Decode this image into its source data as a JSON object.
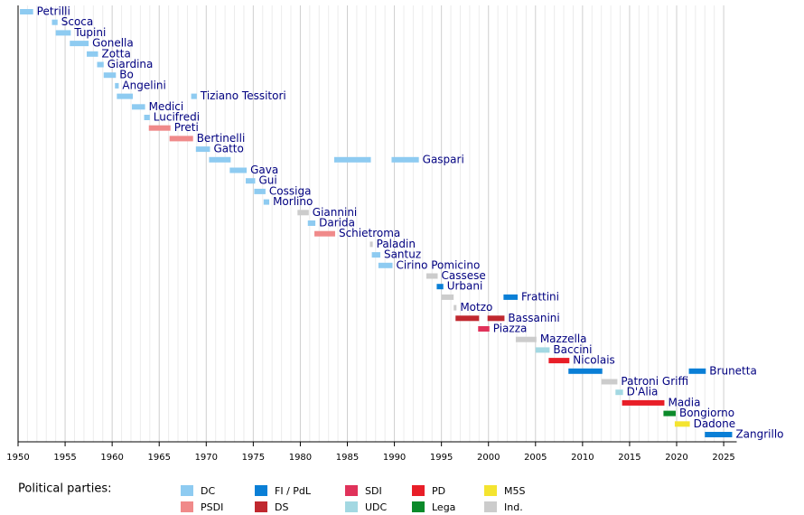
{
  "chart_data": {
    "type": "timeline",
    "xlim": [
      1950,
      2026
    ],
    "xticks": [
      1950,
      1955,
      1960,
      1965,
      1970,
      1975,
      1980,
      1985,
      1990,
      1995,
      2000,
      2005,
      2010,
      2015,
      2020,
      2025
    ],
    "minor_xticks": [
      1951,
      1952,
      1953,
      1954,
      1956,
      1957,
      1958,
      1959,
      1961,
      1962,
      1963,
      1964,
      1966,
      1967,
      1968,
      1969,
      1971,
      1972,
      1973,
      1974,
      1976,
      1977,
      1978,
      1979,
      1981,
      1982,
      1983,
      1984,
      1986,
      1987,
      1988,
      1989,
      1991,
      1992,
      1993,
      1994,
      1996,
      1997,
      1998,
      1999,
      2001,
      2002,
      2003,
      2004,
      2006,
      2007,
      2008,
      2009,
      2011,
      2012,
      2013,
      2014,
      2016,
      2017,
      2018,
      2019,
      2021,
      2022,
      2023,
      2024
    ],
    "legend_title": "Political parties:",
    "parties": [
      {
        "name": "DC",
        "color": "#8ecbf1"
      },
      {
        "name": "PSDI",
        "color": "#f08a8a"
      },
      {
        "name": "FI / PdL",
        "color": "#0a7fd6"
      },
      {
        "name": "DS",
        "color": "#c0282f"
      },
      {
        "name": "SDI",
        "color": "#e0325a"
      },
      {
        "name": "UDC",
        "color": "#a3d8e2"
      },
      {
        "name": "PD",
        "color": "#e81e28"
      },
      {
        "name": "Lega",
        "color": "#0b8a2a"
      },
      {
        "name": "M5S",
        "color": "#f4e430"
      },
      {
        "name": "Ind.",
        "color": "#cccccc"
      }
    ],
    "rows": [
      {
        "name": "Petrilli",
        "bars": [
          {
            "start": 1950.2,
            "end": 1951.6,
            "party": "DC"
          }
        ]
      },
      {
        "name": "Scoca",
        "bars": [
          {
            "start": 1953.6,
            "end": 1954.2,
            "party": "DC"
          }
        ]
      },
      {
        "name": "Tupini",
        "bars": [
          {
            "start": 1954.0,
            "end": 1955.6,
            "party": "DC"
          }
        ]
      },
      {
        "name": "Gonella",
        "bars": [
          {
            "start": 1955.5,
            "end": 1957.5,
            "party": "DC"
          }
        ]
      },
      {
        "name": "Zotta",
        "bars": [
          {
            "start": 1957.3,
            "end": 1958.5,
            "party": "DC"
          }
        ]
      },
      {
        "name": "Giardina",
        "bars": [
          {
            "start": 1958.4,
            "end": 1959.1,
            "party": "DC"
          }
        ]
      },
      {
        "name": "Bo",
        "bars": [
          {
            "start": 1959.1,
            "end": 1960.4,
            "party": "DC"
          }
        ]
      },
      {
        "name": "Angelini",
        "bars": [
          {
            "start": 1960.3,
            "end": 1960.7,
            "party": "DC"
          }
        ]
      },
      {
        "name": "Tiziano Tessitori",
        "bars": [
          {
            "start": 1960.5,
            "end": 1962.2,
            "party": "DC"
          },
          {
            "start": 1968.4,
            "end": 1969.0,
            "party": "DC"
          }
        ]
      },
      {
        "name": "Medici",
        "bars": [
          {
            "start": 1962.1,
            "end": 1963.5,
            "party": "DC"
          }
        ]
      },
      {
        "name": "Lucifredi",
        "bars": [
          {
            "start": 1963.4,
            "end": 1964.0,
            "party": "DC"
          }
        ]
      },
      {
        "name": "Preti",
        "bars": [
          {
            "start": 1963.9,
            "end": 1966.2,
            "party": "PSDI"
          }
        ]
      },
      {
        "name": "Bertinelli",
        "bars": [
          {
            "start": 1966.1,
            "end": 1968.6,
            "party": "PSDI"
          }
        ]
      },
      {
        "name": "Gatto",
        "bars": [
          {
            "start": 1968.9,
            "end": 1970.4,
            "party": "DC"
          }
        ]
      },
      {
        "name": "Gaspari",
        "bars": [
          {
            "start": 1970.3,
            "end": 1972.6,
            "party": "DC"
          },
          {
            "start": 1983.6,
            "end": 1987.5,
            "party": "DC"
          },
          {
            "start": 1989.7,
            "end": 1992.6,
            "party": "DC"
          }
        ]
      },
      {
        "name": "Gava",
        "bars": [
          {
            "start": 1972.5,
            "end": 1974.3,
            "party": "DC"
          }
        ]
      },
      {
        "name": "Gui",
        "bars": [
          {
            "start": 1974.2,
            "end": 1975.2,
            "party": "DC"
          }
        ]
      },
      {
        "name": "Cossiga",
        "bars": [
          {
            "start": 1975.1,
            "end": 1976.3,
            "party": "DC"
          }
        ]
      },
      {
        "name": "Morlino",
        "bars": [
          {
            "start": 1976.1,
            "end": 1976.7,
            "party": "DC"
          }
        ]
      },
      {
        "name": "Giannini",
        "bars": [
          {
            "start": 1979.7,
            "end": 1980.9,
            "party": "Ind."
          }
        ]
      },
      {
        "name": "Darida",
        "bars": [
          {
            "start": 1980.8,
            "end": 1981.6,
            "party": "DC"
          }
        ]
      },
      {
        "name": "Schietroma",
        "bars": [
          {
            "start": 1981.5,
            "end": 1983.7,
            "party": "PSDI"
          }
        ]
      },
      {
        "name": "Paladin",
        "bars": [
          {
            "start": 1987.4,
            "end": 1987.7,
            "party": "Ind."
          }
        ]
      },
      {
        "name": "Santuz",
        "bars": [
          {
            "start": 1987.6,
            "end": 1988.5,
            "party": "DC"
          }
        ]
      },
      {
        "name": "Cirino Pomicino",
        "bars": [
          {
            "start": 1988.3,
            "end": 1989.8,
            "party": "DC"
          }
        ]
      },
      {
        "name": "Cassese",
        "bars": [
          {
            "start": 1993.4,
            "end": 1994.6,
            "party": "Ind."
          }
        ]
      },
      {
        "name": "Urbani",
        "bars": [
          {
            "start": 1994.5,
            "end": 1995.2,
            "party": "FI / PdL"
          }
        ]
      },
      {
        "name": "Frattini",
        "bars": [
          {
            "start": 1995.0,
            "end": 1996.3,
            "party": "Ind."
          },
          {
            "start": 2001.6,
            "end": 2003.1,
            "party": "FI / PdL"
          }
        ]
      },
      {
        "name": "Motzo",
        "bars": [
          {
            "start": 1996.3,
            "end": 1996.6,
            "party": "Ind."
          }
        ]
      },
      {
        "name": "Bassanini",
        "bars": [
          {
            "start": 1996.5,
            "end": 1999.0,
            "party": "DS"
          },
          {
            "start": 1999.9,
            "end": 2001.7,
            "party": "DS"
          }
        ]
      },
      {
        "name": "Piazza",
        "bars": [
          {
            "start": 1998.9,
            "end": 2000.1,
            "party": "SDI"
          }
        ]
      },
      {
        "name": "Mazzella",
        "bars": [
          {
            "start": 2002.9,
            "end": 2005.1,
            "party": "Ind."
          }
        ]
      },
      {
        "name": "Baccini",
        "bars": [
          {
            "start": 2005.0,
            "end": 2006.5,
            "party": "UDC"
          }
        ]
      },
      {
        "name": "Nicolais",
        "bars": [
          {
            "start": 2006.4,
            "end": 2008.6,
            "party": "PD"
          }
        ]
      },
      {
        "name": "Brunetta",
        "bars": [
          {
            "start": 2008.5,
            "end": 2012.1,
            "party": "FI / PdL"
          },
          {
            "start": 2021.3,
            "end": 2023.1,
            "party": "FI / PdL"
          }
        ]
      },
      {
        "name": "Patroni Griffi",
        "bars": [
          {
            "start": 2012.0,
            "end": 2013.7,
            "party": "Ind."
          }
        ]
      },
      {
        "name": "D'Alia",
        "bars": [
          {
            "start": 2013.5,
            "end": 2014.3,
            "party": "UDC"
          }
        ]
      },
      {
        "name": "Madia",
        "bars": [
          {
            "start": 2014.2,
            "end": 2018.7,
            "party": "PD"
          }
        ]
      },
      {
        "name": "Bongiorno",
        "bars": [
          {
            "start": 2018.6,
            "end": 2019.9,
            "party": "Lega"
          }
        ]
      },
      {
        "name": "Dadone",
        "bars": [
          {
            "start": 2019.8,
            "end": 2021.4,
            "party": "M5S"
          }
        ]
      },
      {
        "name": "Zangrillo",
        "bars": [
          {
            "start": 2023.0,
            "end": 2025.9,
            "party": "FI / PdL"
          }
        ]
      }
    ]
  }
}
